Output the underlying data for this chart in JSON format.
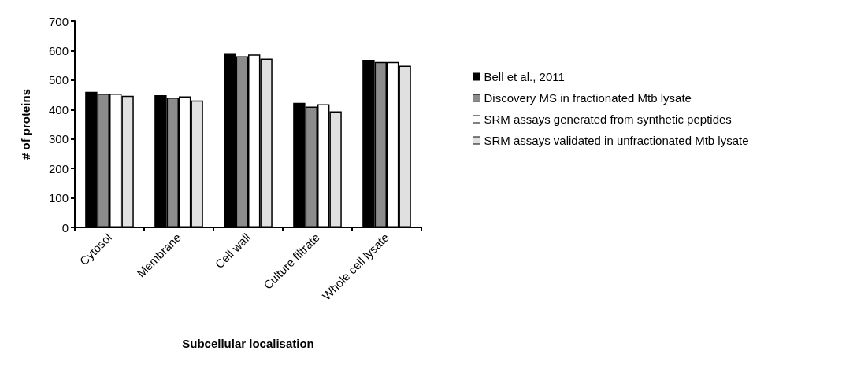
{
  "chart_data": {
    "type": "bar",
    "xlabel": "Subcellular localisation",
    "ylabel": "# of proteins",
    "categories": [
      "Cytosol",
      "Membrane",
      "Cell wall",
      "Culture filtrate",
      "Whole cell lysate"
    ],
    "series": [
      {
        "name": "Bell et al., 2011",
        "color": "#000000",
        "values": [
          460,
          449,
          592,
          423,
          569
        ]
      },
      {
        "name": "Discovery MS in fractionated Mtb lysate",
        "color": "#8c8c8c",
        "values": [
          454,
          441,
          581,
          410,
          562
        ]
      },
      {
        "name": "SRM assays generated from synthetic peptides",
        "color": "#ffffff",
        "values": [
          454,
          445,
          587,
          418,
          562
        ]
      },
      {
        "name": "SRM assays validated in unfractionated Mtb lysate",
        "color": "#e0e0e0",
        "values": [
          447,
          431,
          573,
          394,
          549
        ]
      }
    ],
    "ylim": [
      0,
      700
    ],
    "yticks": [
      0,
      100,
      200,
      300,
      400,
      500,
      600,
      700
    ],
    "grid": false,
    "legend": "right"
  }
}
